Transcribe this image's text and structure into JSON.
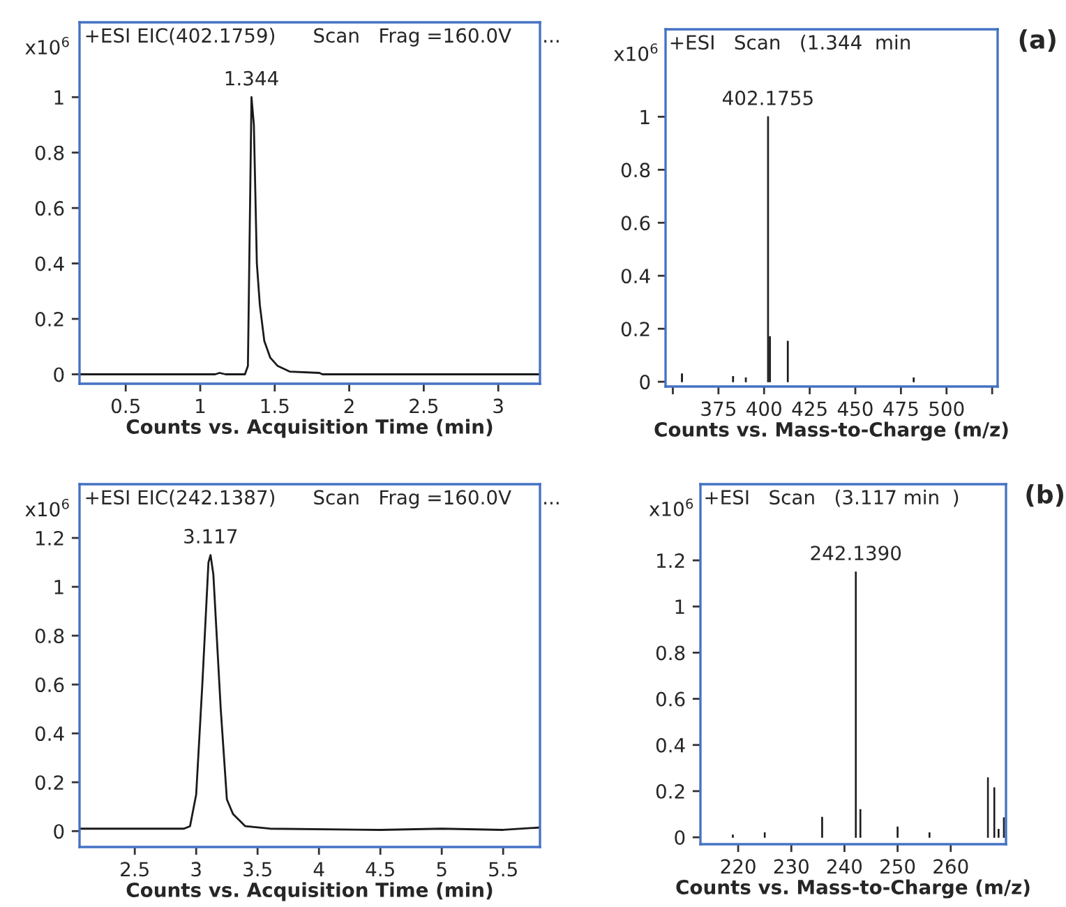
{
  "chart_data": [
    {
      "type": "line",
      "title": "+ESI EIC(402.1759)      Scan   Frag =160.0V     ...",
      "xlabel": "Counts vs. Acquisition Time (min)",
      "ylabel": "x10$^{6}$",
      "marker": "none",
      "line_style": "solid",
      "grid": false,
      "legend": false,
      "xlim": [
        0.19,
        3.28
      ],
      "xticks": [
        0.5,
        1,
        1.5,
        2,
        2.5,
        3
      ],
      "ylim": [
        -0.034,
        1.27
      ],
      "yticks": [
        0,
        0.2,
        0.4,
        0.6,
        0.8,
        1
      ],
      "series": [
        {
          "color": "#1a1a1a",
          "x": [
            0.19,
            1.1,
            1.13,
            1.17,
            1.3,
            1.32,
            1.344,
            1.36,
            1.38,
            1.4,
            1.43,
            1.47,
            1.52,
            1.6,
            1.8,
            1.82,
            3.28
          ],
          "values": [
            0,
            0,
            0.005,
            0,
            0,
            0.03,
            1.0,
            0.9,
            0.4,
            0.25,
            0.12,
            0.06,
            0.03,
            0.01,
            0.005,
            0,
            0
          ]
        }
      ],
      "annotations": [
        {
          "text": "1.344",
          "x": 1.344,
          "y": 1.0
        }
      ]
    },
    {
      "type": "bar",
      "title": "+ESI   Scan   (1.344  min",
      "xlabel": "Counts vs. Mass-to-Charge (m/z)",
      "ylabel": "x10$^{6}$",
      "grid": false,
      "legend": false,
      "xlim": [
        346,
        528
      ],
      "xticks": [
        {
          "value": 350,
          "label": null
        },
        375,
        400,
        425,
        450,
        475,
        500,
        {
          "value": 525,
          "label": null
        }
      ],
      "ylim": [
        -0.018,
        1.33
      ],
      "yticks": [
        0,
        0.2,
        0.4,
        0.6,
        0.8,
        1
      ],
      "series": [
        {
          "color": "#1a1a1a",
          "x": [
            355,
            383,
            390,
            402.1755,
            403.2,
            413,
            482
          ],
          "values": [
            0.03,
            0.02,
            0.015,
            1.0,
            0.17,
            0.153,
            0.015
          ]
        }
      ],
      "annotations": [
        {
          "text": "402.1755",
          "x": 402.1755,
          "y": 1.0
        },
        "(a)"
      ]
    },
    {
      "type": "line",
      "title": "+ESI EIC(242.1387)      Scan   Frag =160.0V     ...",
      "xlabel": "Counts vs. Acquisition Time (min)",
      "ylabel": "x10$^{6}$",
      "marker": "none",
      "line_style": "solid",
      "grid": false,
      "legend": false,
      "xlim": [
        2.05,
        5.8
      ],
      "xticks": [
        2.5,
        3,
        3.5,
        4,
        4.5,
        5,
        5.5
      ],
      "ylim": [
        -0.065,
        1.42
      ],
      "yticks": [
        0,
        0.2,
        0.4,
        0.6,
        0.8,
        1,
        1.2
      ],
      "series": [
        {
          "color": "#1a1a1a",
          "x": [
            2.05,
            2.9,
            2.95,
            3.0,
            3.05,
            3.1,
            3.117,
            3.14,
            3.2,
            3.25,
            3.3,
            3.4,
            3.6,
            4.5,
            5.0,
            5.5,
            5.8
          ],
          "values": [
            0.01,
            0.01,
            0.02,
            0.15,
            0.6,
            1.1,
            1.13,
            1.05,
            0.5,
            0.13,
            0.07,
            0.02,
            0.01,
            0.005,
            0.01,
            0.005,
            0.015
          ]
        }
      ],
      "annotations": [
        {
          "text": "3.117",
          "x": 3.117,
          "y": 1.13
        }
      ]
    },
    {
      "type": "bar",
      "title": "+ESI   Scan   (3.117 min  )",
      "xlabel": "Counts vs. Mass-to-Charge (m/z)",
      "ylabel": "x10$^{6}$",
      "grid": false,
      "legend": false,
      "xlim": [
        212.9,
        270.4
      ],
      "xticks": [
        220,
        230,
        240,
        250,
        260
      ],
      "ylim": [
        -0.03,
        1.53
      ],
      "yticks": [
        0,
        0.2,
        0.4,
        0.6,
        0.8,
        1,
        1.2
      ],
      "series": [
        {
          "color": "#1a1a1a",
          "x": [
            219,
            225,
            235.8,
            242.139,
            243,
            250,
            256,
            267,
            268.2,
            269,
            270
          ],
          "values": [
            0.01,
            0.02,
            0.087,
            1.15,
            0.12,
            0.045,
            0.02,
            0.258,
            0.215,
            0.035,
            0.085
          ]
        }
      ],
      "annotations": [
        {
          "text": "242.1390",
          "x": 242.139,
          "y": 1.15
        },
        "(b)"
      ]
    }
  ]
}
